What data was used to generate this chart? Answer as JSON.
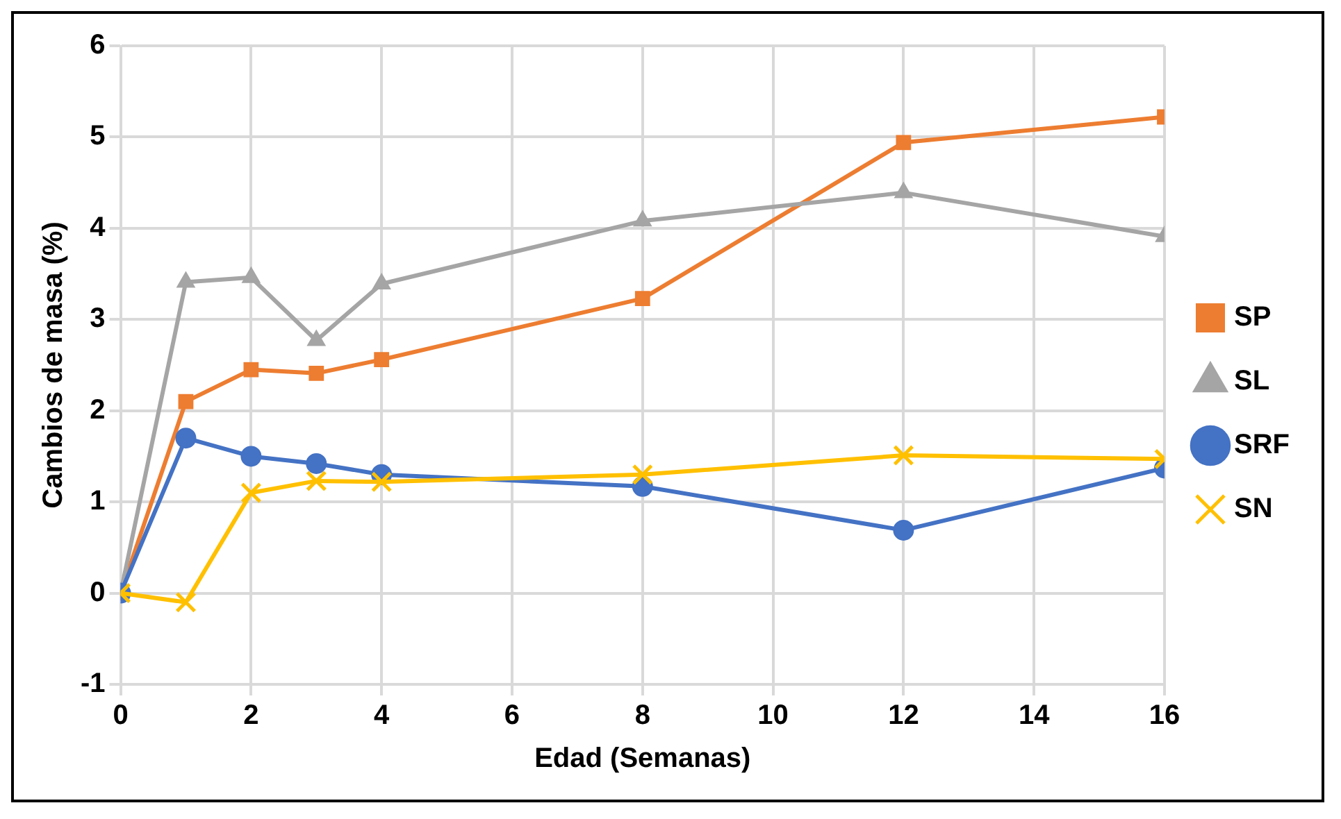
{
  "chart_data": {
    "type": "line",
    "xlabel": "Edad (Semanas)",
    "ylabel": "Cambios de masa (%)",
    "x": [
      0,
      1,
      2,
      3,
      4,
      8,
      12,
      16
    ],
    "series": [
      {
        "name": "SP",
        "color": "#ed7d31",
        "marker": "square",
        "values": [
          0,
          2.1,
          2.45,
          2.41,
          2.56,
          3.23,
          4.94,
          5.22
        ]
      },
      {
        "name": "SL",
        "color": "#a5a5a5",
        "marker": "triangle",
        "values": [
          0,
          3.41,
          3.46,
          2.77,
          3.39,
          4.08,
          4.39,
          3.91
        ]
      },
      {
        "name": "SRF",
        "color": "#4472c4",
        "marker": "circle",
        "values": [
          0,
          1.7,
          1.5,
          1.42,
          1.3,
          1.17,
          0.69,
          1.37
        ]
      },
      {
        "name": "SN",
        "color": "#ffc000",
        "marker": "cross",
        "values": [
          0,
          -0.1,
          1.1,
          1.23,
          1.22,
          1.3,
          1.51,
          1.47
        ]
      }
    ],
    "xlim": [
      0,
      16
    ],
    "xticks": [
      0,
      2,
      4,
      6,
      8,
      10,
      12,
      14,
      16
    ],
    "ylim": [
      -1,
      6
    ],
    "yticks": [
      -1,
      0,
      1,
      2,
      3,
      4,
      5,
      6
    ],
    "grid": true,
    "legend": "right",
    "line_style": "solid"
  }
}
